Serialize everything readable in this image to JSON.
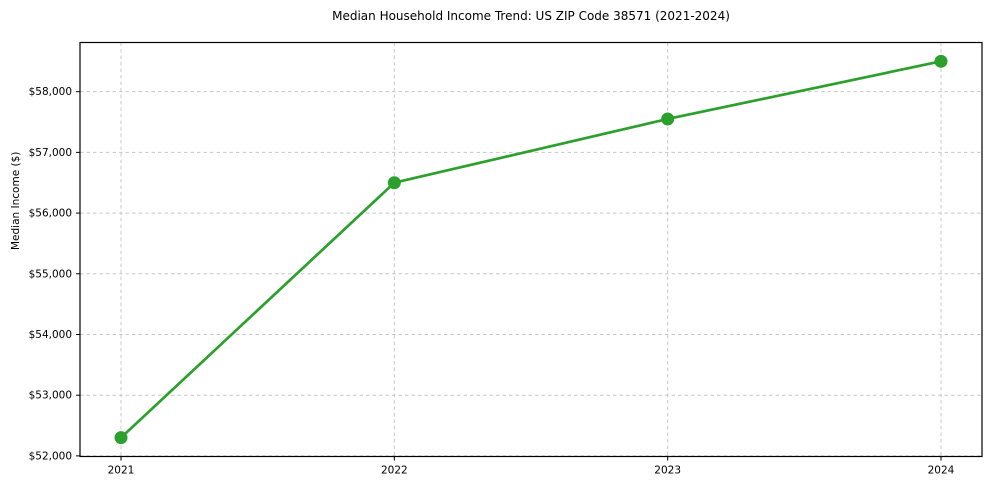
{
  "chart_data": {
    "type": "line",
    "title": "Median Household Income Trend: US ZIP Code 38571 (2021-2024)",
    "xlabel": "",
    "ylabel": "Median Income ($)",
    "x": [
      2021,
      2022,
      2023,
      2024
    ],
    "x_tick_labels": [
      "2021",
      "2022",
      "2023",
      "2024"
    ],
    "series": [
      {
        "name": "Median Household Income",
        "values": [
          52300,
          56500,
          57550,
          58500
        ],
        "color": "#2ca02c"
      }
    ],
    "y_ticks": [
      52000,
      53000,
      54000,
      55000,
      56000,
      57000,
      58000
    ],
    "y_tick_labels": [
      "$52,000",
      "$53,000",
      "$54,000",
      "$55,000",
      "$56,000",
      "$57,000",
      "$58,000"
    ],
    "ylim": [
      51990,
      58810
    ],
    "xlim": [
      2020.85,
      2024.15
    ],
    "grid": true,
    "grid_color": "#c8c8c8",
    "line_width": 2.7,
    "marker": "o",
    "marker_size": 6.5,
    "axis_color": "#000000",
    "background_color": "#ffffff",
    "legend": "none"
  }
}
